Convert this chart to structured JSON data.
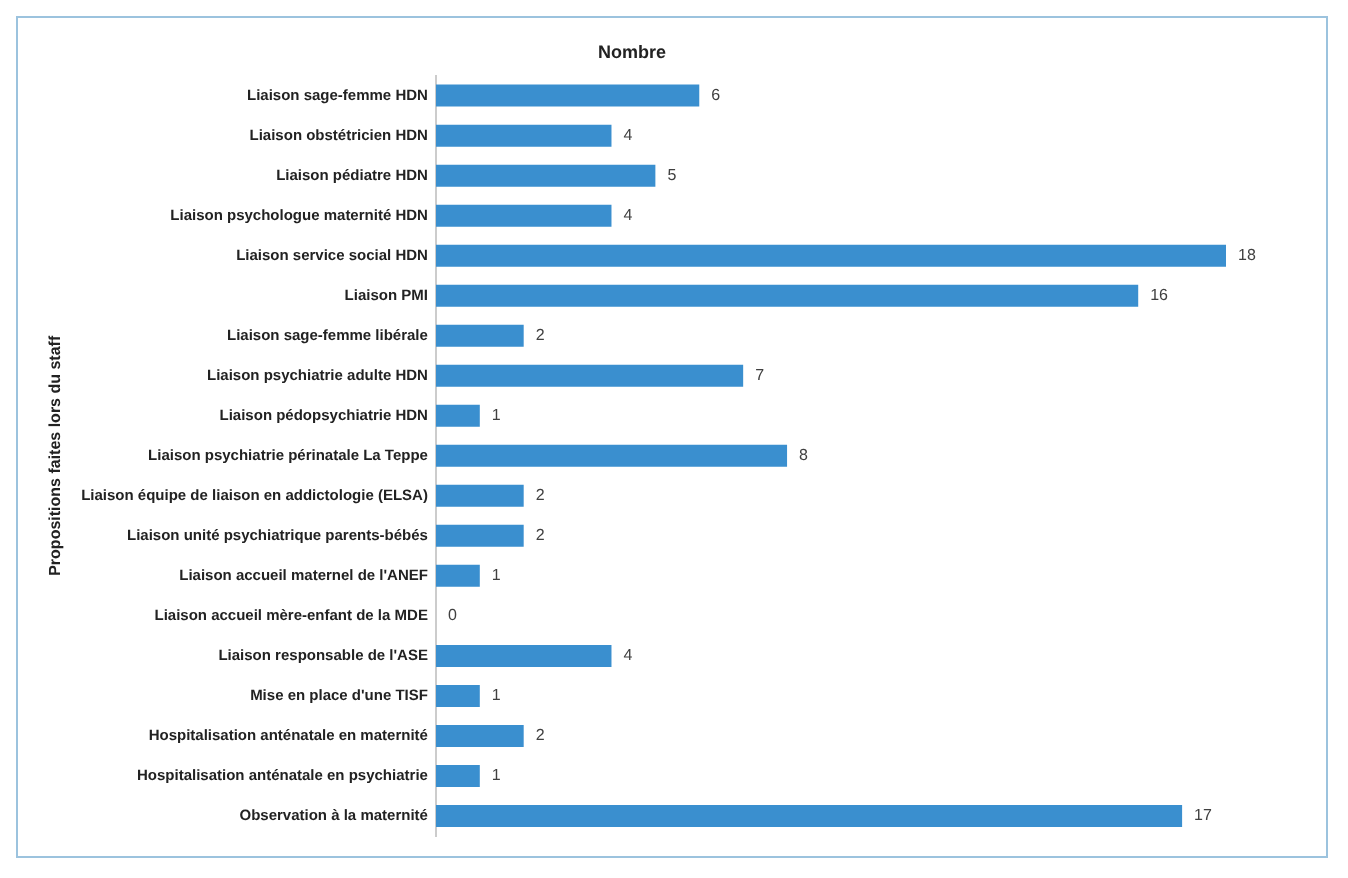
{
  "chart_data": {
    "type": "bar",
    "orientation": "horizontal",
    "title": "Nombre",
    "ylabel": "Propositions faites lors du staff",
    "categories": [
      "Liaison sage-femme HDN",
      "Liaison obstétricien HDN",
      "Liaison pédiatre HDN",
      "Liaison psychologue maternité HDN",
      "Liaison service social HDN",
      "Liaison PMI",
      "Liaison sage-femme libérale",
      "Liaison psychiatrie adulte HDN",
      "Liaison pédopsychiatrie HDN",
      "Liaison psychiatrie périnatale La Teppe",
      "Liaison équipe de liaison en addictologie (ELSA)",
      "Liaison unité psychiatrique parents-bébés",
      "Liaison accueil maternel de l'ANEF",
      "Liaison accueil mère-enfant de la MDE",
      "Liaison responsable de l'ASE",
      "Mise en place d'une TISF",
      "Hospitalisation anténatale en maternité",
      "Hospitalisation anténatale en psychiatrie",
      "Observation à la maternité"
    ],
    "values": [
      6,
      4,
      5,
      4,
      18,
      16,
      2,
      7,
      1,
      8,
      2,
      2,
      1,
      0,
      4,
      1,
      2,
      1,
      17
    ],
    "color": "#3a8fcf",
    "tick_labels": "y",
    "data_labels": true,
    "grid": false,
    "legend": false
  }
}
